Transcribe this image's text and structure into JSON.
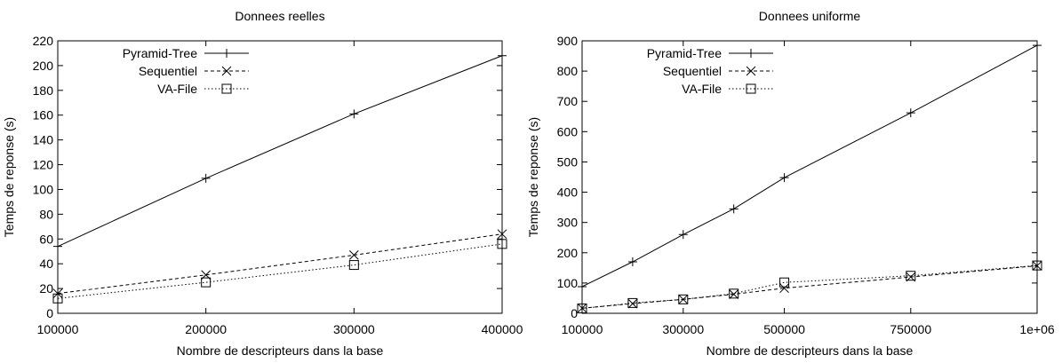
{
  "chart_data": [
    {
      "type": "line",
      "title": "Donnees reelles",
      "xlabel": "Nombre de descripteurs dans la base",
      "ylabel": "Temps de reponse (s)",
      "xlim": [
        100000,
        400000
      ],
      "ylim": [
        0,
        220
      ],
      "xticks": [
        100000,
        200000,
        300000,
        400000
      ],
      "xtick_labels": [
        "100000",
        "200000",
        "300000",
        "400000"
      ],
      "yticks": [
        0,
        20,
        40,
        60,
        80,
        100,
        120,
        140,
        160,
        180,
        200,
        220
      ],
      "ytick_labels": [
        "0",
        "20",
        "40",
        "60",
        "80",
        "100",
        "120",
        "140",
        "160",
        "180",
        "200",
        "220"
      ],
      "grid": false,
      "legend_position": "top-left",
      "series": [
        {
          "name": "Pyramid-Tree",
          "marker": "plus",
          "dash": "solid",
          "x": [
            100000,
            200000,
            300000,
            400000
          ],
          "y": [
            54,
            109,
            161,
            208
          ]
        },
        {
          "name": "Sequentiel",
          "marker": "cross",
          "dash": "dashed",
          "x": [
            100000,
            200000,
            300000,
            400000
          ],
          "y": [
            16,
            31,
            47,
            64
          ]
        },
        {
          "name": "VA-File",
          "marker": "square",
          "dash": "dotted",
          "x": [
            100000,
            200000,
            300000,
            400000
          ],
          "y": [
            12,
            25,
            39,
            56
          ]
        }
      ]
    },
    {
      "type": "line",
      "title": "Donnees uniforme",
      "xlabel": "Nombre de descripteurs dans la base",
      "ylabel": "Temps de reponse (s)",
      "xlim": [
        100000,
        1000000
      ],
      "ylim": [
        0,
        900
      ],
      "xticks": [
        100000,
        300000,
        500000,
        750000,
        1000000
      ],
      "xtick_labels": [
        "100000",
        "300000",
        "500000",
        "750000",
        "1e+06"
      ],
      "yticks": [
        0,
        100,
        200,
        300,
        400,
        500,
        600,
        700,
        800,
        900
      ],
      "ytick_labels": [
        "0",
        "100",
        "200",
        "300",
        "400",
        "500",
        "600",
        "700",
        "800",
        "900"
      ],
      "grid": false,
      "legend_position": "top-left",
      "series": [
        {
          "name": "Pyramid-Tree",
          "marker": "plus",
          "dash": "solid",
          "x": [
            100000,
            200000,
            300000,
            400000,
            500000,
            750000,
            1000000
          ],
          "y": [
            88,
            170,
            260,
            345,
            448,
            662,
            885
          ]
        },
        {
          "name": "Sequentiel",
          "marker": "cross",
          "dash": "dashed",
          "x": [
            100000,
            200000,
            300000,
            400000,
            500000,
            750000,
            1000000
          ],
          "y": [
            17,
            32,
            46,
            63,
            83,
            120,
            157
          ]
        },
        {
          "name": "VA-File",
          "marker": "square",
          "dash": "dotted",
          "x": [
            100000,
            200000,
            300000,
            400000,
            500000,
            750000,
            1000000
          ],
          "y": [
            16,
            34,
            46,
            65,
            102,
            124,
            158
          ]
        }
      ]
    }
  ]
}
